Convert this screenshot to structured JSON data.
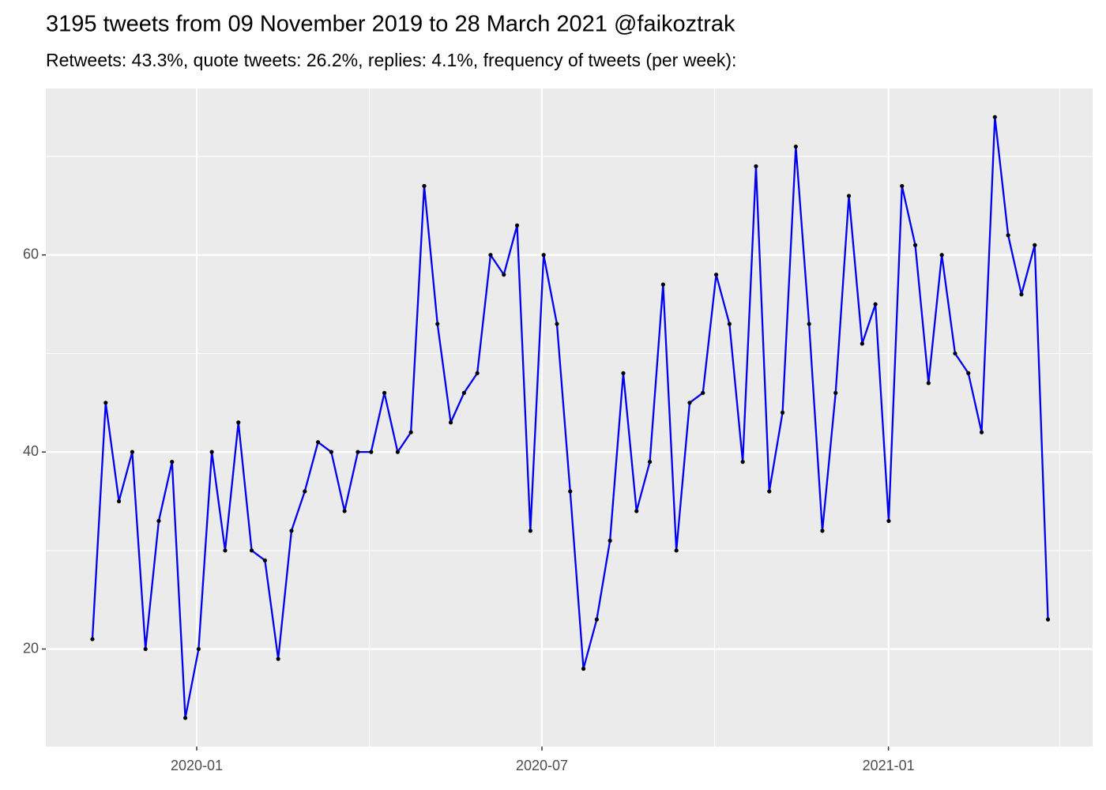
{
  "chart_data": {
    "type": "line",
    "title": "3195 tweets from 09 November 2019 to 28 March 2021 @faikoztrak",
    "subtitle": "Retweets: 43.3%, quote tweets: 26.2%, replies: 4.1%, frequency of tweets (per week):",
    "series": [
      {
        "color": "#0000ee",
        "point_color": "#000000",
        "values": [
          21,
          45,
          35,
          40,
          20,
          33,
          39,
          13,
          20,
          40,
          30,
          43,
          30,
          29,
          19,
          32,
          36,
          41,
          40,
          34,
          40,
          40,
          46,
          40,
          42,
          67,
          53,
          43,
          46,
          48,
          60,
          58,
          63,
          32,
          60,
          53,
          36,
          18,
          23,
          31,
          48,
          34,
          39,
          57,
          30,
          45,
          46,
          58,
          53,
          39,
          69,
          36,
          44,
          71,
          53,
          32,
          46,
          66,
          51,
          55,
          33,
          67,
          61,
          47,
          60,
          50,
          48,
          42,
          74,
          62,
          56,
          61,
          23
        ]
      }
    ],
    "xlim": [
      -3.51,
      75.36
    ],
    "xticks": [
      {
        "value": 7.86,
        "label": "2020-01"
      },
      {
        "value": 33.87,
        "label": "2020-07"
      },
      {
        "value": 59.98,
        "label": "2021-01"
      }
    ],
    "ylim": [
      10.1,
      76.9
    ],
    "yticks": [
      20,
      40,
      60
    ],
    "grid": true
  }
}
